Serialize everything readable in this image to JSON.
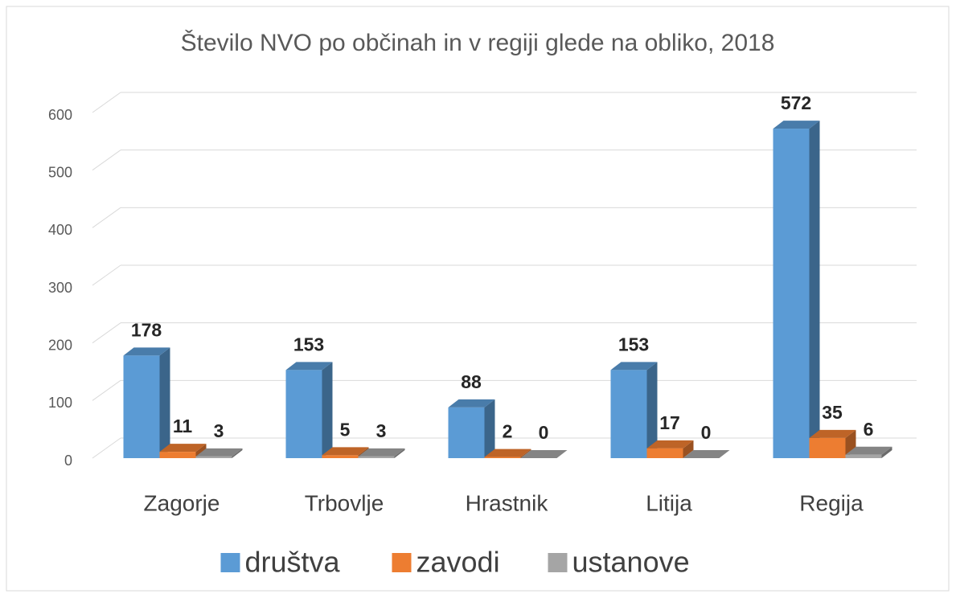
{
  "chart_data": {
    "type": "bar3d",
    "title": "Število NVO po občinah in v regiji glede na obliko, 2018",
    "categories": [
      "Zagorje",
      "Trbovlje",
      "Hrastnik",
      "Litija",
      "Regija"
    ],
    "series": [
      {
        "name": "društva",
        "color": "#5b9bd5",
        "values": [
          178,
          153,
          88,
          153,
          572
        ]
      },
      {
        "name": "zavodi",
        "color": "#ed7d31",
        "values": [
          11,
          5,
          2,
          17,
          35
        ]
      },
      {
        "name": "ustanove",
        "color": "#a5a5a5",
        "values": [
          3,
          3,
          0,
          0,
          6
        ]
      }
    ],
    "ylim": [
      0,
      600
    ],
    "yticks": [
      0,
      100,
      200,
      300,
      400,
      500,
      600
    ],
    "grid": true,
    "legend": "bottom"
  }
}
